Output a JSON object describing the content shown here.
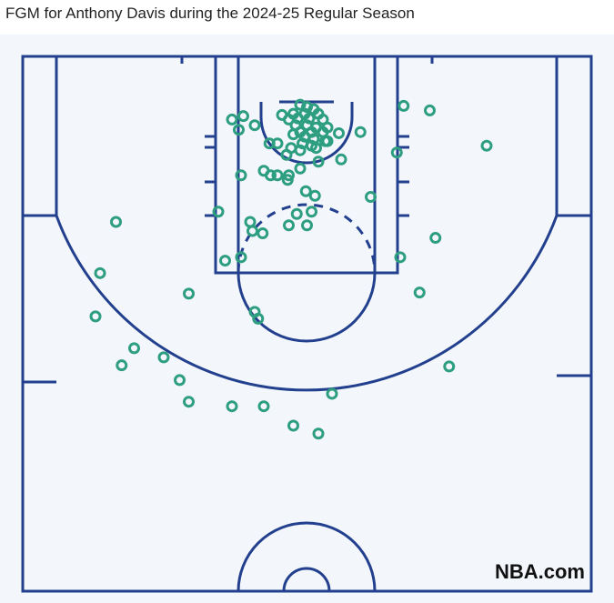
{
  "chart_data": {
    "type": "scatter",
    "title": "FGM for Anthony Davis during the 2024-25 Regular Season",
    "x": [
      -6,
      0,
      6,
      -12,
      -2,
      10,
      -16,
      -8,
      2,
      14,
      -10,
      0,
      8,
      18,
      -6,
      4,
      14,
      -12,
      -2,
      6,
      16,
      -4,
      4,
      -14,
      28,
      47,
      -22,
      -66,
      -56,
      -46,
      -60,
      -33,
      -26,
      -18,
      -6,
      8,
      18,
      30,
      10,
      -6,
      -38,
      -32,
      -26,
      -16,
      -17,
      -58,
      -1,
      7,
      -78,
      -50,
      -48,
      -39,
      -16,
      -9,
      4,
      0,
      -58,
      -72,
      85,
      108,
      158,
      79,
      56,
      113,
      82,
      99,
      -168,
      -182,
      -186,
      -104,
      -46,
      -43,
      -152,
      -163,
      -126,
      -112,
      -104,
      -66,
      -38,
      22,
      -12,
      10,
      125
    ],
    "y": [
      -5,
      -3,
      -1,
      3,
      3,
      3,
      8,
      7,
      7,
      8,
      13,
      13,
      15,
      15,
      19,
      19,
      19,
      21,
      23,
      25,
      27,
      29,
      31,
      33,
      20,
      19,
      4,
      8,
      5,
      13,
      17,
      29,
      29,
      39,
      35,
      33,
      27,
      43,
      45,
      51,
      53,
      57,
      57,
      57,
      61,
      57,
      71,
      75,
      89,
      98,
      106,
      108,
      101,
      91,
      89,
      101,
      129,
      132,
      -4,
      0,
      31,
      37,
      76,
      112,
      129,
      160,
      98,
      143,
      181,
      161,
      177,
      183,
      209,
      224,
      217,
      237,
      256,
      260,
      260,
      249,
      277,
      284,
      225
    ],
    "color": "#2e9e80",
    "xlim": [
      -250,
      250
    ],
    "ylim": [
      -47.5,
      422.5
    ]
  },
  "watermark": "NBA.com"
}
